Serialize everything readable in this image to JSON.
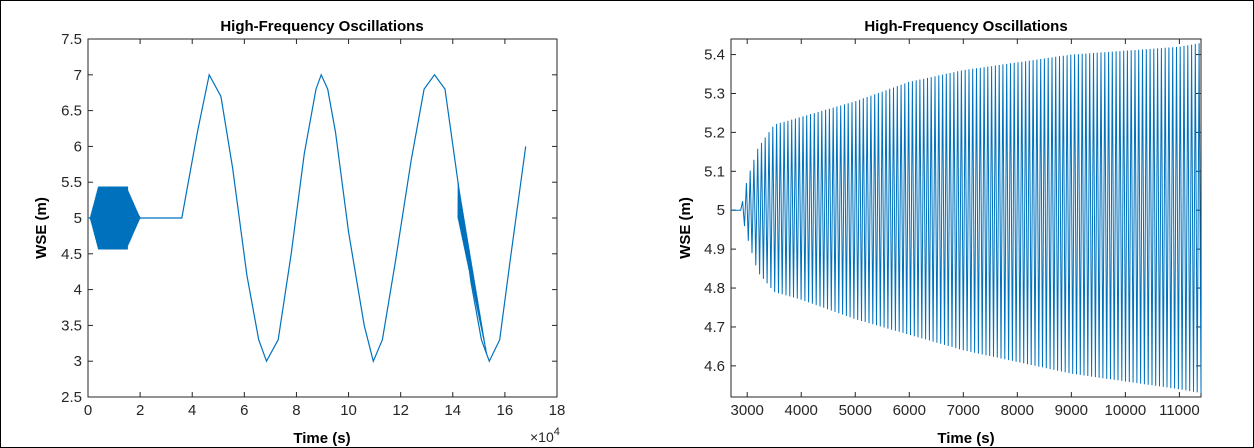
{
  "chart_data": [
    {
      "type": "line",
      "title": "High-Frequency Oscillations",
      "xlabel": "Time (s)",
      "ylabel": "WSE (m)",
      "x_exponent_label": "×10",
      "x_exponent_power": "4",
      "xlim": [
        0,
        18
      ],
      "ylim": [
        2.5,
        7.5
      ],
      "xticks": [
        "0",
        "2",
        "4",
        "6",
        "8",
        "10",
        "12",
        "14",
        "16",
        "18"
      ],
      "yticks": [
        "2.5",
        "3",
        "3.5",
        "4",
        "4.5",
        "5",
        "5.5",
        "6",
        "6.5",
        "7",
        "7.5"
      ],
      "color": "#0072BD",
      "grid": false,
      "series": [
        {
          "x": [
            0,
            2.0,
            3.6,
            4.2,
            4.65,
            5.1,
            5.55,
            6.1,
            6.55,
            6.85,
            7.3,
            7.8,
            8.3,
            8.75,
            8.95,
            9.2,
            9.5,
            10.0,
            10.6,
            10.95,
            11.3,
            11.8,
            12.4,
            12.9,
            13.3,
            13.7,
            14.2,
            14.7,
            15.1,
            15.4,
            15.8,
            16.2,
            16.8
          ],
          "y": [
            5.0,
            5.0,
            5.0,
            6.2,
            7.0,
            6.7,
            5.7,
            4.2,
            3.3,
            3.0,
            3.3,
            4.5,
            5.9,
            6.8,
            7.0,
            6.8,
            6.2,
            4.8,
            3.5,
            3.0,
            3.3,
            4.4,
            5.8,
            6.8,
            7.0,
            6.8,
            5.5,
            4.1,
            3.3,
            3.0,
            3.3,
            4.4,
            6.0
          ]
        }
      ],
      "bursts": [
        {
          "x_start": 0.08,
          "x_end": 2.0,
          "center": 5.0,
          "amplitude_max": 0.44
        },
        {
          "x_start": 14.2,
          "x_end": 15.3,
          "upper_start": 5.5,
          "lower_start": 5.0,
          "end": 3.1
        }
      ]
    },
    {
      "type": "line",
      "title": "High-Frequency Oscillations",
      "xlabel": "Time (s)",
      "ylabel": "WSE (m)",
      "xlim": [
        2700,
        11400
      ],
      "ylim": [
        4.52,
        5.44
      ],
      "xticks": [
        "3000",
        "4000",
        "5000",
        "6000",
        "7000",
        "8000",
        "9000",
        "10000",
        "11000"
      ],
      "yticks": [
        "4.6",
        "4.7",
        "4.8",
        "4.9",
        "5",
        "5.1",
        "5.2",
        "5.3",
        "5.4"
      ],
      "color": "#0072BD",
      "grid": false,
      "series": [
        {
          "name": "",
          "flat_x": [
            2700,
            2880
          ],
          "flat_y": 5.0,
          "oscillation": {
            "x_start": 2880,
            "x_end": 11400,
            "center": 5.0,
            "cycle_count": 122,
            "upper_envelope": [
              [
                2880,
                5.0
              ],
              [
                3000,
                5.08
              ],
              [
                3200,
                5.16
              ],
              [
                3500,
                5.22
              ],
              [
                4000,
                5.24
              ],
              [
                5000,
                5.28
              ],
              [
                6000,
                5.33
              ],
              [
                7000,
                5.36
              ],
              [
                8000,
                5.38
              ],
              [
                9000,
                5.4
              ],
              [
                10000,
                5.41
              ],
              [
                11000,
                5.42
              ],
              [
                11400,
                5.43
              ]
            ],
            "lower_envelope": [
              [
                2880,
                5.0
              ],
              [
                3000,
                4.93
              ],
              [
                3200,
                4.84
              ],
              [
                3500,
                4.79
              ],
              [
                4000,
                4.77
              ],
              [
                5000,
                4.72
              ],
              [
                6000,
                4.68
              ],
              [
                7000,
                4.64
              ],
              [
                8000,
                4.61
              ],
              [
                9000,
                4.58
              ],
              [
                10000,
                4.56
              ],
              [
                11000,
                4.54
              ],
              [
                11400,
                4.53
              ]
            ]
          }
        }
      ]
    }
  ]
}
